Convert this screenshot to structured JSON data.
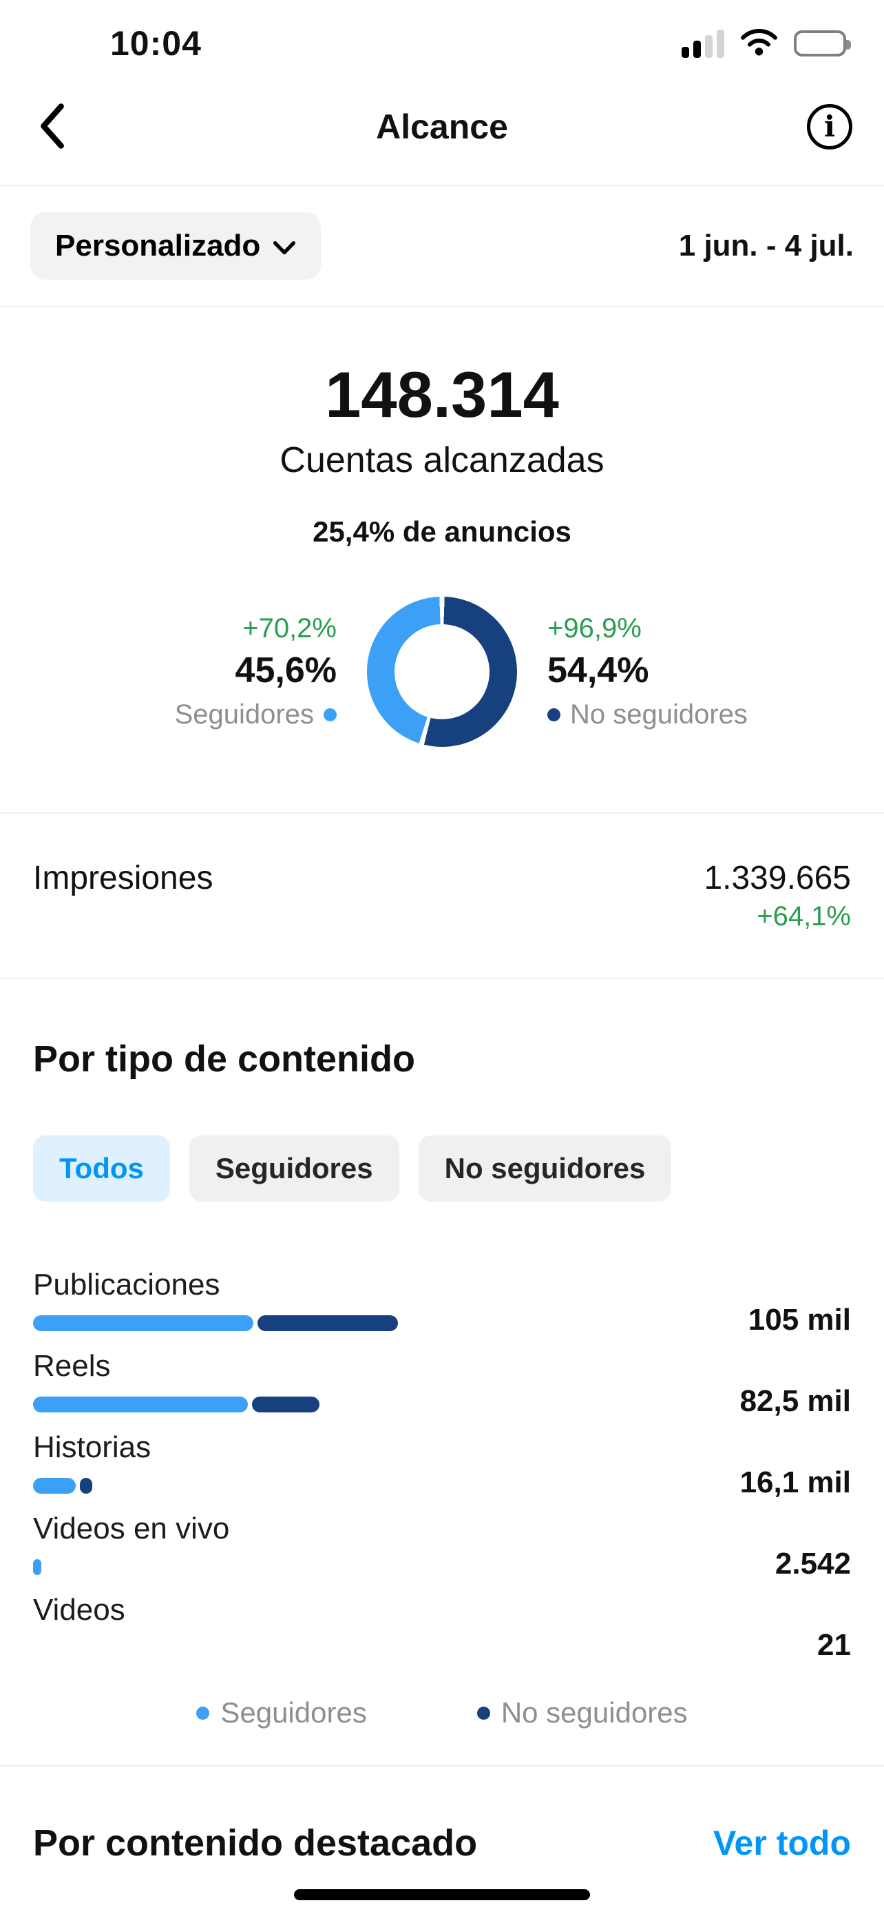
{
  "colors": {
    "followers": "#3BA0F6",
    "non_followers": "#16417E",
    "accent_blue": "#0095F6",
    "green": "#2A9D4F"
  },
  "status_bar": {
    "time": "10:04"
  },
  "nav": {
    "title": "Alcance"
  },
  "filter_bar": {
    "period_selector": "Personalizado",
    "date_range": "1 jun. - 4 jul."
  },
  "summary": {
    "reach_value": "148.314",
    "reach_label": "Cuentas alcanzadas",
    "ads_share": "25,4% de anuncios"
  },
  "donut": {
    "followers": {
      "delta": "+70,2%",
      "percent": "45,6%",
      "label": "Seguidores",
      "value": 45.6
    },
    "non_followers": {
      "delta": "+96,9%",
      "percent": "54,4%",
      "label": "No seguidores",
      "value": 54.4
    }
  },
  "impressions": {
    "label": "Impresiones",
    "value": "1.339.665",
    "delta": "+64,1%"
  },
  "content_section": {
    "title": "Por tipo de contenido",
    "tabs": [
      {
        "label": "Todos",
        "active": true
      },
      {
        "label": "Seguidores",
        "active": false
      },
      {
        "label": "No seguidores",
        "active": false
      }
    ],
    "bars": [
      {
        "label": "Publicaciones",
        "value": "105 mil",
        "followers_width_pct": 26.9,
        "non_followers_width_pct": 17.2
      },
      {
        "label": "Reels",
        "value": "82,5 mil",
        "followers_width_pct": 26.3,
        "non_followers_width_pct": 8.2
      },
      {
        "label": "Historias",
        "value": "16,1 mil",
        "followers_width_pct": 5.2,
        "non_followers_width_pct": 1.5
      },
      {
        "label": "Videos en vivo",
        "value": "2.542",
        "followers_width_pct": 1.0,
        "non_followers_width_pct": 0
      },
      {
        "label": "Videos",
        "value": "21",
        "followers_width_pct": 0,
        "non_followers_width_pct": 0
      }
    ],
    "legend": [
      {
        "label": "Seguidores"
      },
      {
        "label": "No seguidores"
      }
    ]
  },
  "highlight_section": {
    "title": "Por contenido destacado",
    "action": "Ver todo"
  }
}
